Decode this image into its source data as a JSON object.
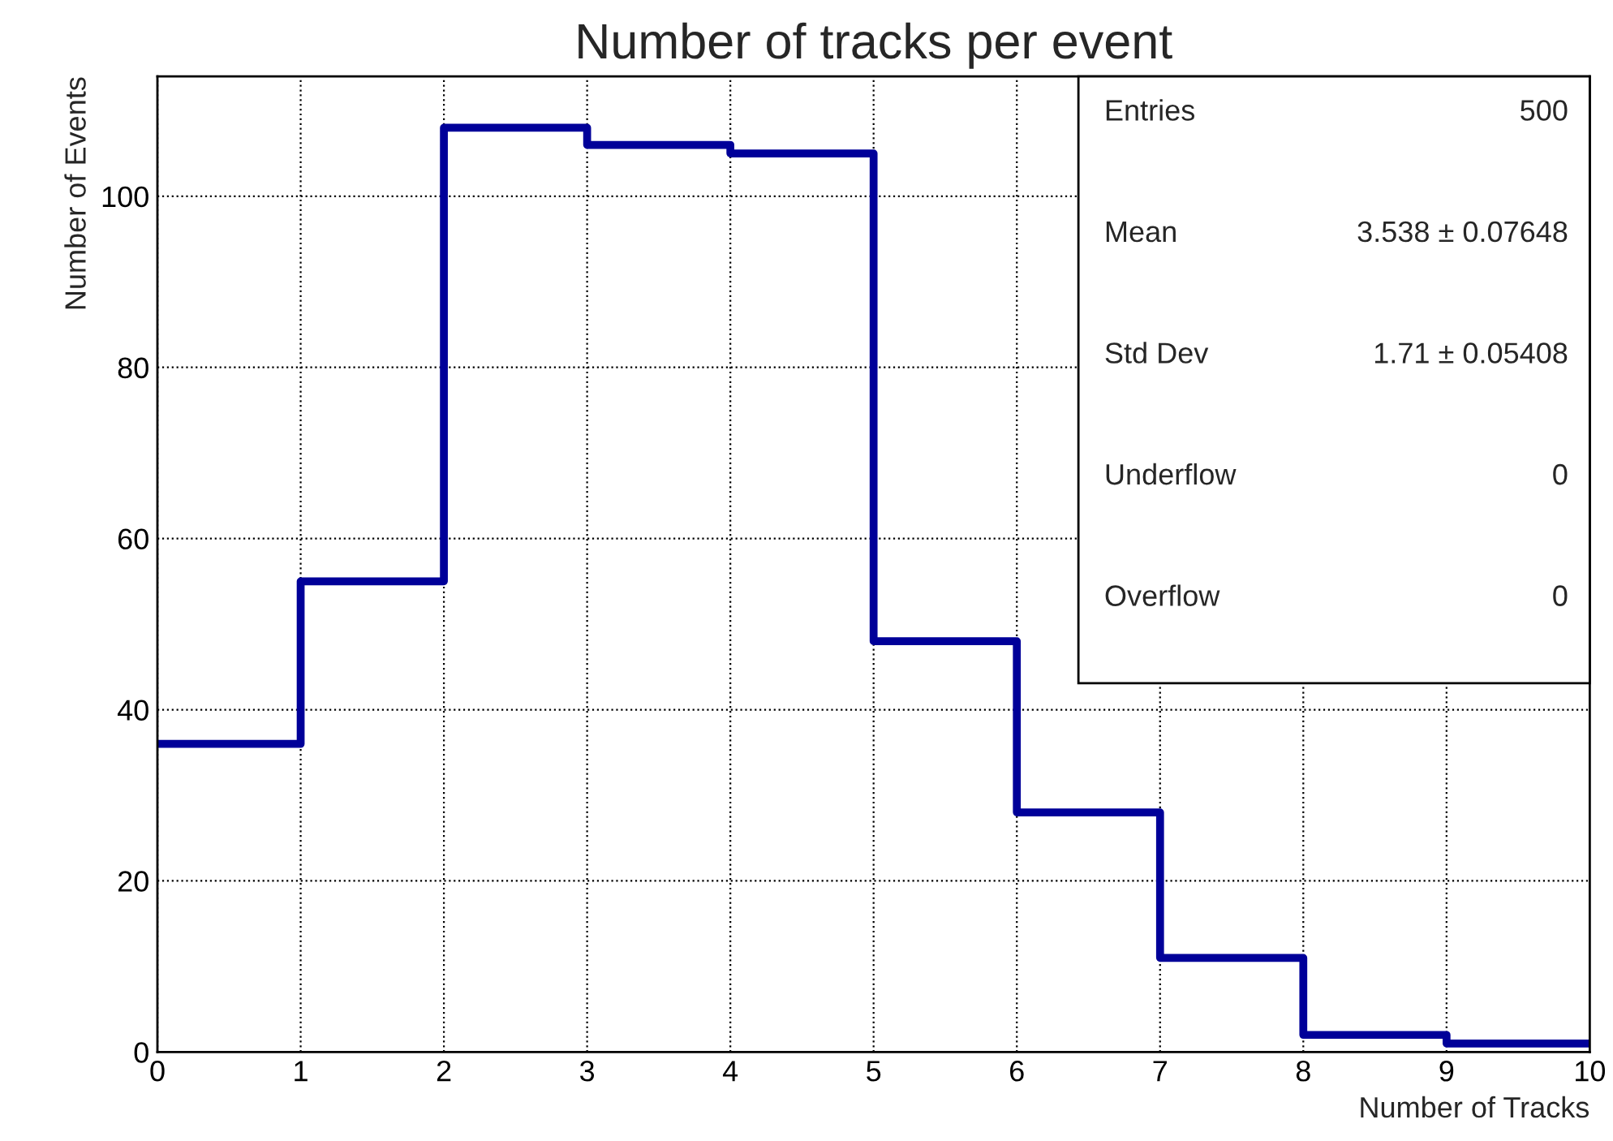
{
  "chart_data": {
    "type": "histogram",
    "title": "Number of tracks per event",
    "xlabel": "Number of Tracks",
    "ylabel": "Number of Events",
    "bins": [
      0,
      1,
      2,
      3,
      4,
      5,
      6,
      7,
      8,
      9,
      10
    ],
    "values": [
      36,
      55,
      108,
      106,
      105,
      48,
      28,
      11,
      2,
      1
    ],
    "color": "#000099",
    "xlim": [
      0,
      10
    ],
    "ylim": [
      0,
      114
    ],
    "xticks": [
      0,
      1,
      2,
      3,
      4,
      5,
      6,
      7,
      8,
      9,
      10
    ],
    "yticks": [
      0,
      20,
      40,
      60,
      80,
      100
    ],
    "grid": true,
    "legend": false,
    "annotations": [
      "Entries",
      "500",
      "Mean",
      "3.538 ± 0.07648",
      "Std Dev",
      "1.71 ± 0.05408",
      "Underflow",
      "0",
      "Overflow",
      "0"
    ]
  }
}
